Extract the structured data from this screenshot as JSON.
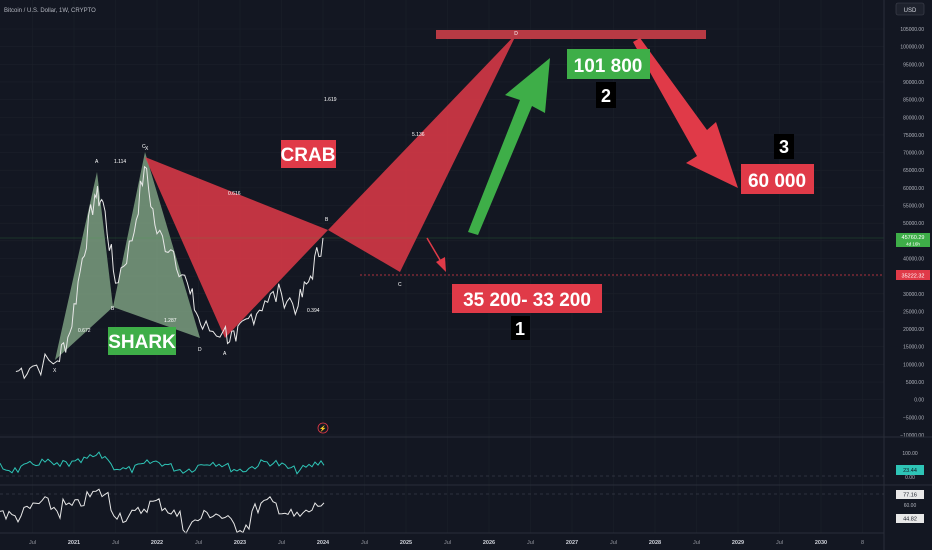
{
  "header": {
    "title": "Bitcoin / U.S. Dollar, 1W, CRYPTO",
    "currency": "USD"
  },
  "colors": {
    "bg": "#131722",
    "grid": "#1e222d",
    "price": "#e1e1e1",
    "red": "#e03a48",
    "green": "#3eae48",
    "shark_fill": "#8ab08c"
  },
  "chart_data": {
    "type": "line",
    "title": "Bitcoin / U.S. Dollar, 1W, CRYPTO",
    "y_axis": {
      "ticks": [
        "105000.00",
        "100000.00",
        "95000.00",
        "90000.00",
        "85000.00",
        "80000.00",
        "75000.00",
        "70000.00",
        "65000.00",
        "60000.00",
        "55000.00",
        "50000.00",
        "45000.00",
        "40000.00",
        "35000.00",
        "30000.00",
        "25000.00",
        "20000.00",
        "15000.00",
        "10000.00",
        "5000.00",
        "0.00",
        "−5000.00",
        "−10000.00"
      ]
    },
    "x_axis": {
      "ticks": [
        "Jul",
        "2021",
        "Jul",
        "2022",
        "Jul",
        "2023",
        "Jul",
        "2024",
        "Jul",
        "2025",
        "Jul",
        "2026",
        "Jul",
        "2027",
        "Jul",
        "2028",
        "Jul",
        "2029",
        "Jul",
        "2030",
        "8"
      ]
    },
    "price_label": {
      "value": "45760.29",
      "sub": "4d 16h"
    },
    "level_label": "35222.32",
    "series": [
      {
        "values": [
          [
            2020.3,
            8000
          ],
          [
            2020.5,
            9500
          ],
          [
            2020.8,
            11000
          ],
          [
            2020.95,
            19000
          ],
          [
            2021.1,
            40000
          ],
          [
            2021.25,
            58000
          ],
          [
            2021.35,
            56000
          ],
          [
            2021.5,
            33000
          ],
          [
            2021.7,
            45000
          ],
          [
            2021.85,
            66000
          ],
          [
            2022.0,
            47000
          ],
          [
            2022.2,
            42000
          ],
          [
            2022.4,
            30000
          ],
          [
            2022.55,
            20000
          ],
          [
            2022.8,
            19500
          ],
          [
            2022.95,
            16500
          ],
          [
            2023.1,
            23000
          ],
          [
            2023.3,
            28000
          ],
          [
            2023.5,
            30000
          ],
          [
            2023.7,
            26500
          ],
          [
            2023.85,
            35000
          ],
          [
            2024.0,
            45760
          ]
        ]
      }
    ],
    "patterns": {
      "shark": {
        "name": "SHARK",
        "points": [
          "X",
          "A",
          "B",
          "C",
          "D"
        ],
        "ratios": [
          "0.672",
          "1.114",
          "1.287"
        ]
      },
      "crab": {
        "name": "CRAB",
        "points": [
          "X",
          "A",
          "B",
          "C",
          "D"
        ],
        "ratios": [
          "0.616",
          "0.394",
          "5.136",
          "1.619"
        ]
      }
    },
    "targets": [
      {
        "number": "1",
        "label": "35 200- 33 200"
      },
      {
        "number": "2",
        "label": "101 800"
      },
      {
        "number": "3",
        "label": "60 000"
      }
    ],
    "indicators": [
      {
        "values": [
          "23.44",
          "100.00",
          "0.00"
        ]
      },
      {
        "values": [
          "77.16",
          "60.00",
          "44.82"
        ]
      }
    ]
  }
}
